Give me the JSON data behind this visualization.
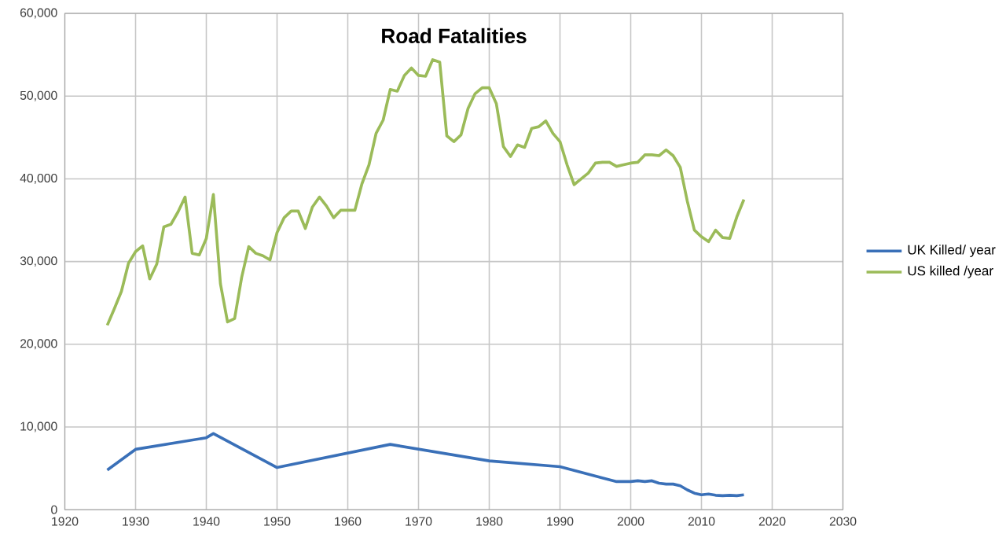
{
  "chart_data": {
    "type": "line",
    "title": "Road Fatalities",
    "xlim": [
      1920,
      2030
    ],
    "xticks": [
      1920,
      1930,
      1940,
      1950,
      1960,
      1970,
      1980,
      1990,
      2000,
      2010,
      2020,
      2030
    ],
    "ylim": [
      0,
      60000
    ],
    "yticks": [
      {
        "value": 0,
        "label": "0"
      },
      {
        "value": 10000,
        "label": "10,000"
      },
      {
        "value": 20000,
        "label": "20,000"
      },
      {
        "value": 30000,
        "label": "30,000"
      },
      {
        "value": 40000,
        "label": "40,000"
      },
      {
        "value": 50000,
        "label": "50,000"
      },
      {
        "value": 60000,
        "label": "60,000"
      }
    ],
    "grid": true,
    "legend": "right",
    "marker": "none",
    "line_style": "solid",
    "series": [
      {
        "name": "UK Killed/ year",
        "color": "#3a70b8",
        "x": [
          1926,
          1930,
          1940,
          1941,
          1950,
          1966,
          1980,
          1990,
          1998,
          2000,
          2001,
          2002,
          2003,
          2004,
          2005,
          2006,
          2007,
          2008,
          2009,
          2010,
          2011,
          2012,
          2013,
          2014,
          2015,
          2016
        ],
        "values": [
          4800,
          7300,
          8700,
          9200,
          5100,
          7900,
          5900,
          5200,
          3400,
          3400,
          3500,
          3400,
          3500,
          3200,
          3100,
          3100,
          2900,
          2400,
          2000,
          1800,
          1900,
          1750,
          1700,
          1750,
          1700,
          1800
        ]
      },
      {
        "name": "US killed /year",
        "color": "#9bbb59",
        "x": [
          1926,
          1927,
          1928,
          1929,
          1930,
          1931,
          1932,
          1933,
          1934,
          1935,
          1936,
          1937,
          1938,
          1939,
          1940,
          1941,
          1942,
          1943,
          1944,
          1945,
          1946,
          1947,
          1948,
          1949,
          1950,
          1951,
          1952,
          1953,
          1954,
          1955,
          1956,
          1957,
          1958,
          1959,
          1960,
          1961,
          1962,
          1963,
          1964,
          1965,
          1966,
          1967,
          1968,
          1969,
          1970,
          1971,
          1972,
          1973,
          1974,
          1975,
          1976,
          1977,
          1978,
          1979,
          1980,
          1981,
          1982,
          1983,
          1984,
          1985,
          1986,
          1987,
          1988,
          1989,
          1990,
          1991,
          1992,
          1993,
          1994,
          1995,
          1996,
          1997,
          1998,
          1999,
          2000,
          2001,
          2002,
          2003,
          2004,
          2005,
          2006,
          2007,
          2008,
          2009,
          2010,
          2011,
          2012,
          2013,
          2014,
          2015,
          2016
        ],
        "values": [
          22300,
          24300,
          26400,
          29800,
          31200,
          31900,
          27900,
          29700,
          34200,
          34500,
          36000,
          37800,
          31000,
          30800,
          32800,
          38100,
          27300,
          22700,
          23100,
          28100,
          31800,
          31000,
          30700,
          30200,
          33500,
          35300,
          36100,
          36100,
          34000,
          36600,
          37800,
          36700,
          35300,
          36200,
          36200,
          36200,
          39400,
          41700,
          45500,
          47100,
          50800,
          50600,
          52500,
          53400,
          52500,
          52400,
          54400,
          54100,
          45200,
          44500,
          45300,
          48500,
          50300,
          51000,
          51000,
          49100,
          43900,
          42700,
          44100,
          43800,
          46100,
          46300,
          47000,
          45500,
          44500,
          41700,
          39300,
          40000,
          40700,
          41900,
          42000,
          42000,
          41500,
          41700,
          41900,
          42000,
          42900,
          42900,
          42800,
          43500,
          42800,
          41400,
          37300,
          33800,
          33000,
          32400,
          33800,
          32900,
          32800,
          35400,
          37500
        ]
      }
    ]
  }
}
